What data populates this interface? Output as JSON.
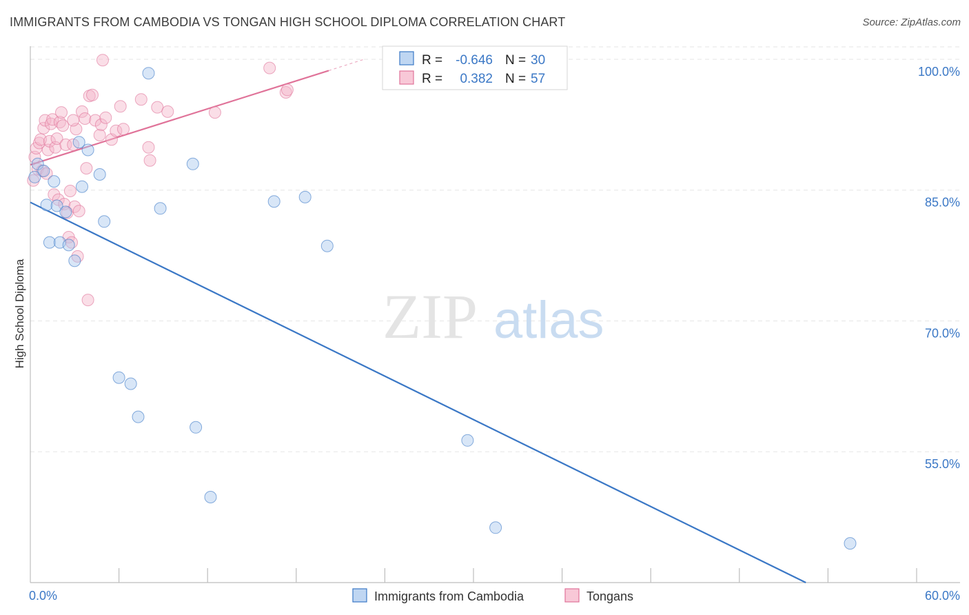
{
  "title": "IMMIGRANTS FROM CAMBODIA VS TONGAN HIGH SCHOOL DIPLOMA CORRELATION CHART",
  "source": "Source: ZipAtlas.com",
  "watermark": {
    "zip": "ZIP",
    "atlas": "atlas"
  },
  "colors": {
    "blue": "#3b78c6",
    "blue_fill": "#a9c8ee",
    "pink": "#e07399",
    "pink_fill": "#f5b6ca"
  },
  "chart_data": {
    "type": "scatter",
    "ylabel": "High School Diploma",
    "xlim": [
      0,
      60
    ],
    "ylim": [
      40,
      101.5
    ],
    "x_tick_labels": [
      "0.0%",
      "60.0%"
    ],
    "y_ticks": [
      55,
      70,
      85,
      100
    ],
    "y_tick_labels": [
      "55.0%",
      "70.0%",
      "85.0%",
      "100.0%"
    ],
    "grid": true,
    "legend_stats": [
      {
        "r_label": "R =",
        "r": "-0.646",
        "n_label": "N =",
        "n": "30"
      },
      {
        "r_label": "R =",
        "r": "0.382",
        "n_label": "N =",
        "n": "57"
      }
    ],
    "series": [
      {
        "name": "Immigrants from Cambodia",
        "color": "#3b78c6",
        "trend": {
          "x": [
            0,
            52.5
          ],
          "y": [
            83.6,
            40
          ]
        },
        "points": [
          [
            0.3,
            86.5
          ],
          [
            0.5,
            88.0
          ],
          [
            0.9,
            87.2
          ],
          [
            1.1,
            83.3
          ],
          [
            1.3,
            79.0
          ],
          [
            1.6,
            86.0
          ],
          [
            1.8,
            83.2
          ],
          [
            2.0,
            79.0
          ],
          [
            2.4,
            82.5
          ],
          [
            2.6,
            78.7
          ],
          [
            3.0,
            76.9
          ],
          [
            3.3,
            90.5
          ],
          [
            3.5,
            85.4
          ],
          [
            3.9,
            89.6
          ],
          [
            4.7,
            86.8
          ],
          [
            5.0,
            81.4
          ],
          [
            6.0,
            63.5
          ],
          [
            6.8,
            62.8
          ],
          [
            7.3,
            59.0
          ],
          [
            8.0,
            98.4
          ],
          [
            8.8,
            82.9
          ],
          [
            11.0,
            88.0
          ],
          [
            11.2,
            57.8
          ],
          [
            12.2,
            49.8
          ],
          [
            16.5,
            83.7
          ],
          [
            18.6,
            84.2
          ],
          [
            20.1,
            78.6
          ],
          [
            29.6,
            56.3
          ],
          [
            31.5,
            46.3
          ],
          [
            55.5,
            44.5
          ]
        ]
      },
      {
        "name": "Tongans",
        "color": "#e07399",
        "trend": {
          "x": [
            0,
            20.2
          ],
          "y": [
            87.9,
            98.7
          ]
        },
        "trend_dashed": {
          "x": [
            20.2,
            22.6
          ],
          "y": [
            98.7,
            100.0
          ]
        },
        "points": [
          [
            0.2,
            86.1
          ],
          [
            0.3,
            88.8
          ],
          [
            0.4,
            89.8
          ],
          [
            0.5,
            87.4
          ],
          [
            0.6,
            90.4
          ],
          [
            0.7,
            90.8
          ],
          [
            0.8,
            87.2
          ],
          [
            0.9,
            92.1
          ],
          [
            1.0,
            93.0
          ],
          [
            1.1,
            86.9
          ],
          [
            1.2,
            89.6
          ],
          [
            1.3,
            90.6
          ],
          [
            1.4,
            92.6
          ],
          [
            1.5,
            93.1
          ],
          [
            1.6,
            84.5
          ],
          [
            1.7,
            89.9
          ],
          [
            1.8,
            90.9
          ],
          [
            1.9,
            83.9
          ],
          [
            2.0,
            92.8
          ],
          [
            2.1,
            93.9
          ],
          [
            2.2,
            92.4
          ],
          [
            2.3,
            83.4
          ],
          [
            2.4,
            90.2
          ],
          [
            2.5,
            82.4
          ],
          [
            2.6,
            79.6
          ],
          [
            2.7,
            84.9
          ],
          [
            2.8,
            79.0
          ],
          [
            2.9,
            90.2
          ],
          [
            3.0,
            83.1
          ],
          [
            3.1,
            92.0
          ],
          [
            3.2,
            77.4
          ],
          [
            3.3,
            82.6
          ],
          [
            3.5,
            94.0
          ],
          [
            3.7,
            93.2
          ],
          [
            3.8,
            87.5
          ],
          [
            3.9,
            72.4
          ],
          [
            4.0,
            95.8
          ],
          [
            4.2,
            95.9
          ],
          [
            4.4,
            93.0
          ],
          [
            4.7,
            91.3
          ],
          [
            4.8,
            92.5
          ],
          [
            4.9,
            99.9
          ],
          [
            5.1,
            93.3
          ],
          [
            5.5,
            90.8
          ],
          [
            5.8,
            91.8
          ],
          [
            6.1,
            94.6
          ],
          [
            6.3,
            92.0
          ],
          [
            7.5,
            95.4
          ],
          [
            8.0,
            89.9
          ],
          [
            8.1,
            88.4
          ],
          [
            8.6,
            94.5
          ],
          [
            9.3,
            94.0
          ],
          [
            12.5,
            93.9
          ],
          [
            16.2,
            99.0
          ],
          [
            17.3,
            96.2
          ],
          [
            17.4,
            96.5
          ],
          [
            2.9,
            93.0
          ]
        ]
      }
    ]
  }
}
